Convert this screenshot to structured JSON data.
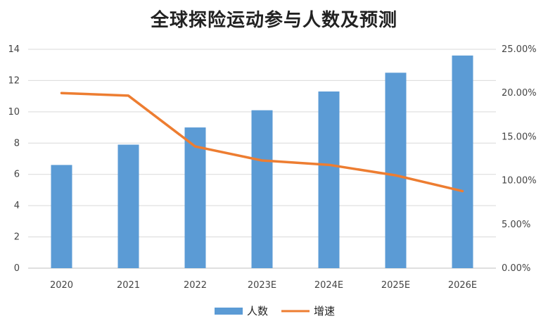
{
  "chart_data": {
    "type": "bar+line",
    "title": "全球探险运动参与人数及预测",
    "categories": [
      "2020",
      "2021",
      "2022",
      "2023E",
      "2024E",
      "2025E",
      "2026E"
    ],
    "series": [
      {
        "name": "人数",
        "type": "bar",
        "axis": "left",
        "color": "#5b9bd5",
        "values": [
          6.6,
          7.9,
          9.0,
          10.1,
          11.3,
          12.5,
          13.6
        ]
      },
      {
        "name": "增速",
        "type": "line",
        "axis": "right",
        "color": "#ed7d31",
        "values": [
          0.2,
          0.197,
          0.139,
          0.123,
          0.118,
          0.106,
          0.088
        ]
      }
    ],
    "y_left": {
      "min": 0,
      "max": 14,
      "ticks": [
        "0",
        "2",
        "4",
        "6",
        "8",
        "10",
        "12",
        "14"
      ]
    },
    "y_right": {
      "min": 0,
      "max": 0.25,
      "ticks": [
        "0.00%",
        "5.00%",
        "10.00%",
        "15.00%",
        "20.00%",
        "25.00%"
      ]
    },
    "grid": true,
    "legend_position": "bottom"
  }
}
